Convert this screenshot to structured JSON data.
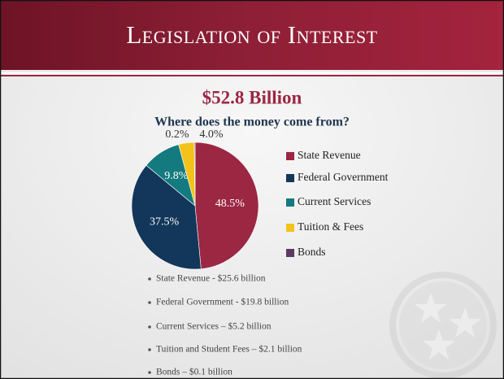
{
  "header": {
    "title": "Legislation of Interest"
  },
  "chart_data": {
    "type": "pie",
    "title": "$52.8 Billion",
    "subtitle": "Where does the money come from?",
    "categories": [
      "State Revenue",
      "Federal Government",
      "Current Services",
      "Tuition & Fees",
      "Bonds"
    ],
    "values": [
      48.5,
      37.5,
      9.8,
      4.0,
      0.2
    ],
    "value_labels": [
      "48.5%",
      "37.5%",
      "9.8%",
      "4.0%",
      "0.2%"
    ],
    "colors": [
      "#9b2743",
      "#13375a",
      "#137a7f",
      "#f3c31b",
      "#5b3a63"
    ],
    "legend": "right"
  },
  "bullets": [
    "State Revenue - $25.6 billion",
    "Federal Government - $19.8 billion",
    "Current Services – $5.2 billion",
    "Tuition and Student Fees – $2.1 billion",
    "Bonds – $0.1 billion"
  ]
}
